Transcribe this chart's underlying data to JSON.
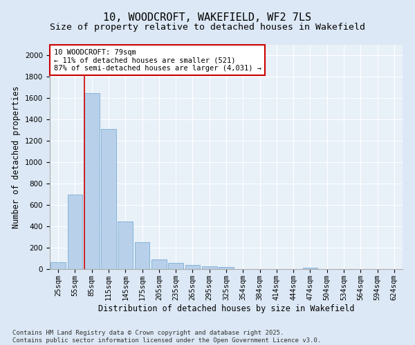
{
  "title": "10, WOODCROFT, WAKEFIELD, WF2 7LS",
  "subtitle": "Size of property relative to detached houses in Wakefield",
  "xlabel": "Distribution of detached houses by size in Wakefield",
  "ylabel": "Number of detached properties",
  "categories": [
    "25sqm",
    "55sqm",
    "85sqm",
    "115sqm",
    "145sqm",
    "175sqm",
    "205sqm",
    "235sqm",
    "265sqm",
    "295sqm",
    "325sqm",
    "354sqm",
    "384sqm",
    "414sqm",
    "444sqm",
    "474sqm",
    "504sqm",
    "534sqm",
    "564sqm",
    "594sqm",
    "624sqm"
  ],
  "values": [
    65,
    700,
    1650,
    1310,
    445,
    255,
    90,
    55,
    40,
    25,
    20,
    0,
    0,
    0,
    0,
    15,
    0,
    0,
    0,
    0,
    0
  ],
  "bar_color": "#b8d0ea",
  "bar_edge_color": "#7aadd4",
  "vline_x": 1.55,
  "vline_color": "#cc0000",
  "annotation_box_text": "10 WOODCROFT: 79sqm\n← 11% of detached houses are smaller (521)\n87% of semi-detached houses are larger (4,031) →",
  "annotation_box_color": "#cc0000",
  "ylim": [
    0,
    2100
  ],
  "yticks": [
    0,
    200,
    400,
    600,
    800,
    1000,
    1200,
    1400,
    1600,
    1800,
    2000
  ],
  "bg_color": "#dce8f5",
  "plot_bg_color": "#e8f0f8",
  "grid_color": "#ffffff",
  "footer_line1": "Contains HM Land Registry data © Crown copyright and database right 2025.",
  "footer_line2": "Contains public sector information licensed under the Open Government Licence v3.0.",
  "title_fontsize": 11,
  "axis_label_fontsize": 8.5,
  "tick_fontsize": 7.5,
  "annotation_fontsize": 7.5,
  "footer_fontsize": 6.5
}
